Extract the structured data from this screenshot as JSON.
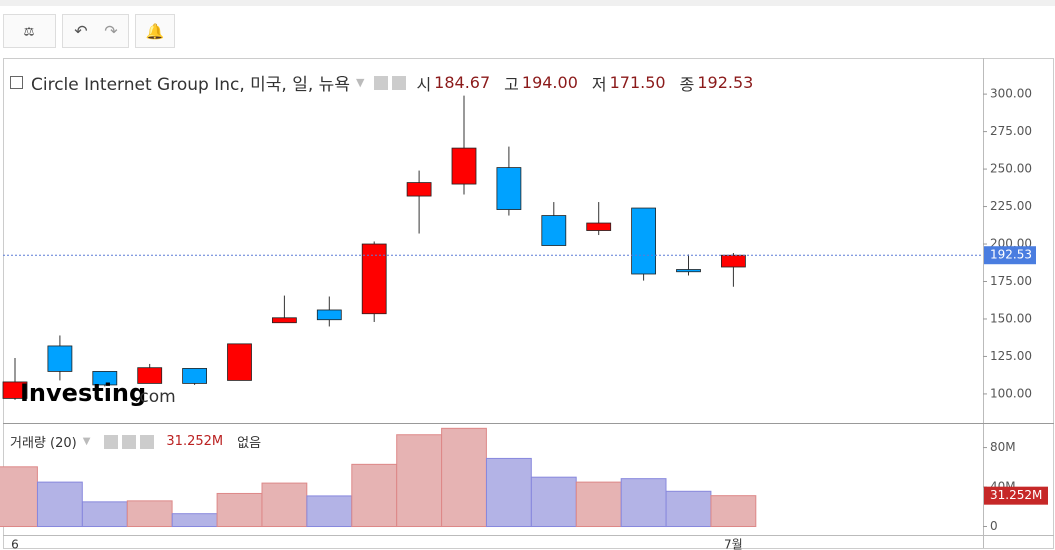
{
  "chart_data": [
    {
      "type": "candlestick",
      "title": "Circle Internet Group Inc, 미국, 일, 뉴욕",
      "ohlc_labels": [
        "시",
        "고",
        "저",
        "종"
      ],
      "ohlc_values": [
        "184.67",
        "194.00",
        "171.50",
        "192.53"
      ],
      "logo": [
        "Investing",
        ".com"
      ],
      "categories": [
        "6",
        null,
        null,
        null,
        null,
        null,
        null,
        null,
        null,
        null,
        null,
        null,
        null,
        null,
        null,
        null,
        "7월"
      ],
      "open": [
        97,
        132,
        115,
        107,
        117,
        109,
        147.5,
        156,
        153.5,
        232,
        240,
        251,
        219,
        209,
        224,
        183,
        184.67
      ],
      "high": [
        124,
        139,
        115,
        120,
        117,
        133.5,
        165.6,
        165,
        201.7,
        249,
        299,
        265,
        228,
        228,
        224,
        193,
        194
      ],
      "low": [
        96,
        109,
        105,
        107,
        106,
        109,
        147.5,
        145,
        148,
        207,
        233,
        219,
        199,
        206,
        175.6,
        179,
        171.5
      ],
      "close": [
        108,
        115,
        106,
        117.5,
        107,
        133.4,
        150.8,
        149.5,
        200,
        241,
        264,
        223,
        199,
        214,
        180,
        181.5,
        192.53
      ],
      "up_color": "#ff0000",
      "down_color": "#00a2ff",
      "ylim": [
        80.6,
        324.1
      ],
      "yticks": [
        {
          "value": 100,
          "label": "100.00"
        },
        {
          "value": 125,
          "label": "125.00"
        },
        {
          "value": 150,
          "label": "150.00"
        },
        {
          "value": 175,
          "label": "175.00"
        },
        {
          "value": 200,
          "label": "200.00"
        },
        {
          "value": 225,
          "label": "225.00"
        },
        {
          "value": 250,
          "label": "250.00"
        },
        {
          "value": 275,
          "label": "275.00"
        },
        {
          "value": 300,
          "label": "300.00"
        }
      ]
    },
    {
      "type": "bar",
      "title": "거래량 (20)",
      "last_label": "31.252M",
      "ma_label": "없음",
      "values": [
        60.5,
        45,
        25,
        26,
        13,
        33.5,
        44,
        31,
        63,
        93,
        99.5,
        69,
        50,
        45,
        48.5,
        35.7,
        31.252
      ],
      "up_color": "#e6b3b3",
      "down_color": "#b3b3e6",
      "ylim": [
        -8.6,
        104.9
      ],
      "yticks": [
        0,
        {
          "value": 40,
          "label": "40M"
        },
        {
          "value": 80,
          "label": "80M"
        }
      ]
    }
  ]
}
